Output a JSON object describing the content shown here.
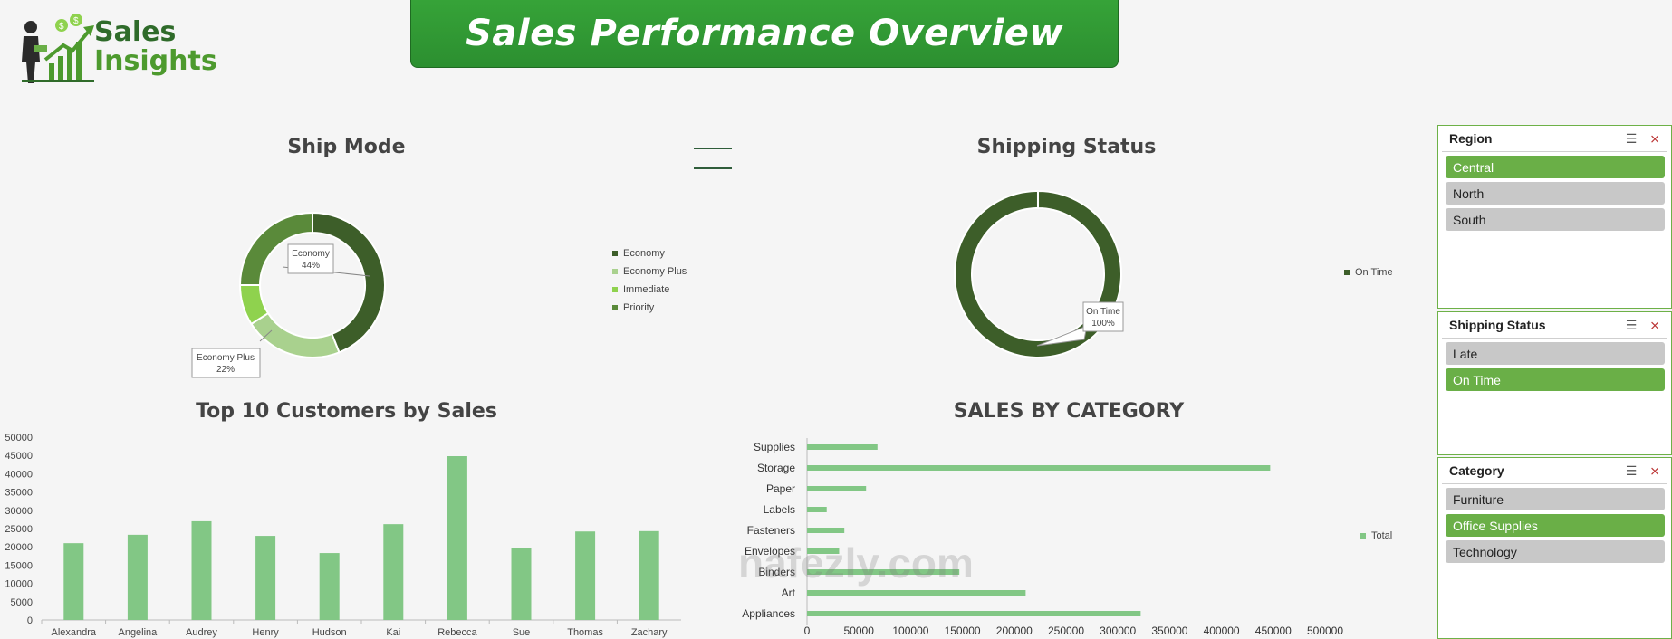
{
  "logo": {
    "line1": "Sales",
    "line2": "Insights"
  },
  "banner": {
    "title": "Sales Performance Overview"
  },
  "colors": {
    "dark_green": "#3d5e29",
    "mid_green": "#5a8a3a",
    "light_green": "#a9d18e",
    "lime_green": "#8fd24e",
    "bar_green": "#82c785",
    "selected": "#6aaf47",
    "unselected": "#c8c8c8"
  },
  "ship_mode": {
    "title": "Ship Mode",
    "chart_data": {
      "type": "pie",
      "categories": [
        "Economy",
        "Economy Plus",
        "Immediate",
        "Priority"
      ],
      "values": [
        44,
        22,
        9,
        25
      ],
      "labels": [
        {
          "name": "Economy",
          "value": "44%"
        },
        {
          "name": "Economy Plus",
          "value": "22%"
        }
      ]
    },
    "legend": [
      "Economy",
      "Economy Plus",
      "Immediate",
      "Priority"
    ]
  },
  "shipping_status": {
    "title": "Shipping Status",
    "chart_data": {
      "type": "pie",
      "categories": [
        "On Time"
      ],
      "values": [
        100
      ],
      "labels": [
        {
          "name": "On Time",
          "value": "100%"
        }
      ]
    },
    "legend": [
      "On Time"
    ]
  },
  "top_customers": {
    "title": "Top 10 Customers by Sales",
    "chart_data": {
      "type": "bar",
      "categories": [
        "Alexandra",
        "Angelina",
        "Audrey",
        "Henry",
        "Hudson",
        "Kai",
        "Rebecca",
        "Sue",
        "Thomas",
        "Zachary"
      ],
      "values": [
        21000,
        23300,
        27000,
        23000,
        18300,
        26200,
        44800,
        19800,
        24200,
        24300
      ],
      "ylim": [
        0,
        50000
      ],
      "yticks": [
        "0",
        "5000",
        "10000",
        "15000",
        "20000",
        "25000",
        "30000",
        "35000",
        "40000",
        "45000",
        "50000"
      ]
    }
  },
  "sales_by_category": {
    "title": "SALES BY CATEGORY",
    "chart_data": {
      "type": "bar",
      "orientation": "horizontal",
      "categories": [
        "Supplies",
        "Storage",
        "Paper",
        "Labels",
        "Fasteners",
        "Envelopes",
        "Binders",
        "Art",
        "Appliances"
      ],
      "series": [
        {
          "name": "Total",
          "values": [
            68000,
            447000,
            57000,
            19000,
            36000,
            31000,
            147000,
            211000,
            322000
          ]
        }
      ],
      "xlim": [
        0,
        500000
      ],
      "xticks": [
        "0",
        "50000",
        "100000",
        "150000",
        "200000",
        "250000",
        "300000",
        "350000",
        "400000",
        "450000",
        "500000"
      ]
    },
    "legend": [
      "Total"
    ]
  },
  "slicers": {
    "region": {
      "title": "Region",
      "items": [
        {
          "label": "Central",
          "selected": true
        },
        {
          "label": "North",
          "selected": false
        },
        {
          "label": "South",
          "selected": false
        }
      ]
    },
    "shipping_status": {
      "title": "Shipping Status",
      "items": [
        {
          "label": "Late",
          "selected": false
        },
        {
          "label": "On Time",
          "selected": true
        }
      ]
    },
    "category": {
      "title": "Category",
      "items": [
        {
          "label": "Furniture",
          "selected": false
        },
        {
          "label": "Office Supplies",
          "selected": true
        },
        {
          "label": "Technology",
          "selected": false
        }
      ]
    }
  },
  "watermark": "nafezly.com"
}
